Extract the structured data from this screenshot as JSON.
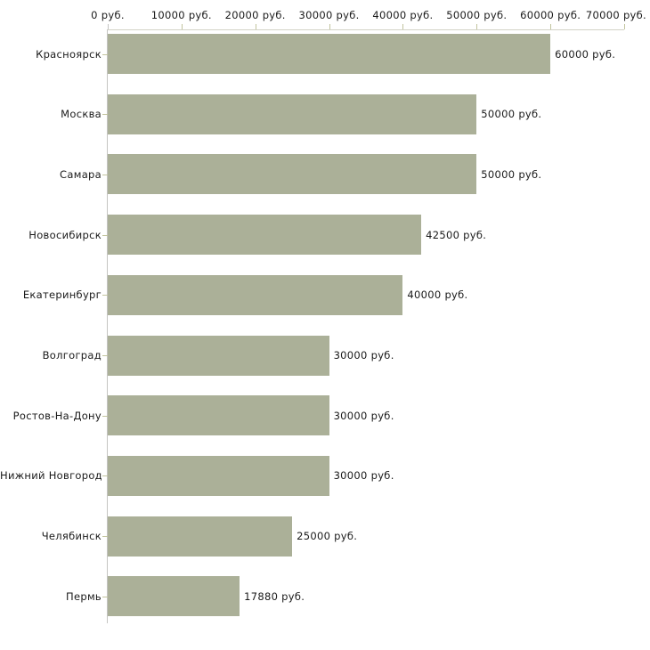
{
  "chart_data": {
    "type": "bar",
    "orientation": "horizontal",
    "title": "",
    "categories": [
      "Красноярск",
      "Москва",
      "Самара",
      "Новосибирск",
      "Екатеринбург",
      "Волгоград",
      "Ростов-На-Дону",
      "Нижний Новгород",
      "Челябинск",
      "Пермь"
    ],
    "values": [
      60000,
      50000,
      50000,
      42500,
      40000,
      30000,
      30000,
      30000,
      25000,
      17880
    ],
    "value_labels": [
      "60000 руб.",
      "50000 руб.",
      "50000 руб.",
      "42500 руб.",
      "40000 руб.",
      "30000 руб.",
      "30000 руб.",
      "30000 руб.",
      "25000 руб.",
      "17880 руб."
    ],
    "x_axis": {
      "position": "top",
      "xlim": [
        0,
        70000
      ],
      "tick_values": [
        0,
        10000,
        20000,
        30000,
        40000,
        50000,
        60000,
        70000
      ],
      "tick_labels": [
        "0 руб.",
        "10000 руб.",
        "20000 руб.",
        "30000 руб.",
        "40000 руб.",
        "50000 руб.",
        "60000 руб.",
        "70000 руб."
      ]
    },
    "grid": false,
    "legend": false,
    "colors": {
      "bar": "#abb098",
      "axis_line_h": "#d2d2c6",
      "axis_line_v": "#c4c4c2",
      "tick_olive": "#c2c49e",
      "tick_gray": "#c4c4c2",
      "text": "#1a1a1a",
      "background": "#ffffff"
    }
  }
}
